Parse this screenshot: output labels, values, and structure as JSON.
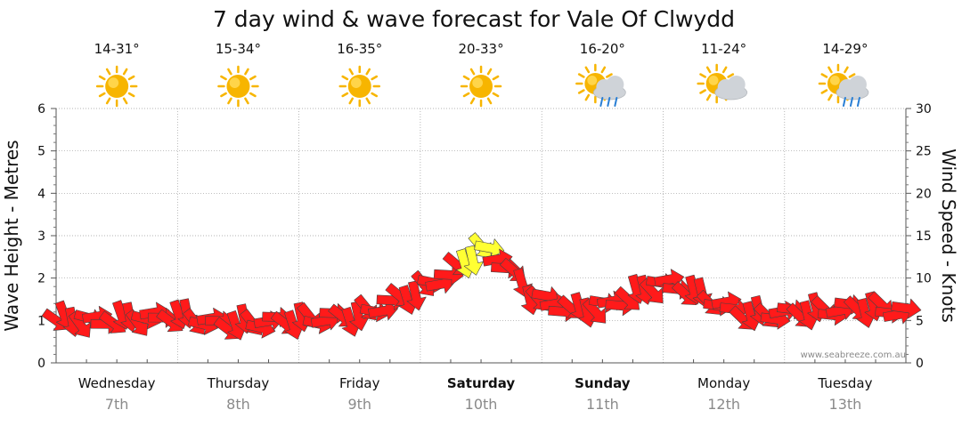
{
  "title": "7 day wind & wave forecast for Vale Of Clwydd",
  "watermark": "www.seabreeze.com.au",
  "colors": {
    "wind_arrow": "#ff1a1a",
    "wind_arrow_strong": "#ffff33",
    "arrow_outline": "#444444",
    "grid": "#9a9a9a",
    "sun": "#f7b500",
    "cloud": "#cfd3d8",
    "rain": "#2a7fd4"
  },
  "days": [
    {
      "name": "Wednesday",
      "date": "7th",
      "temp": "14-31°",
      "weather_icon": "sun-icon",
      "bold": false
    },
    {
      "name": "Thursday",
      "date": "8th",
      "temp": "15-34°",
      "weather_icon": "sun-icon",
      "bold": false
    },
    {
      "name": "Friday",
      "date": "9th",
      "temp": "16-35°",
      "weather_icon": "sun-icon",
      "bold": false
    },
    {
      "name": "Saturday",
      "date": "10th",
      "temp": "20-33°",
      "weather_icon": "sun-icon",
      "bold": true
    },
    {
      "name": "Sunday",
      "date": "11th",
      "temp": "16-20°",
      "weather_icon": "sun-cloud-rain-icon",
      "bold": true
    },
    {
      "name": "Monday",
      "date": "12th",
      "temp": "11-24°",
      "weather_icon": "sun-cloud-icon",
      "bold": false
    },
    {
      "name": "Tuesday",
      "date": "13th",
      "temp": "14-29°",
      "weather_icon": "sun-cloud-rain-icon",
      "bold": false
    }
  ],
  "chart_data": {
    "type": "line",
    "ylabel": "Wave Height - Metres",
    "y2label": "Wind Speed - Knots",
    "ylim": [
      0,
      6
    ],
    "y2lim": [
      0,
      30
    ],
    "yticks": [
      "0",
      "1",
      "2",
      "3",
      "4",
      "5",
      "6"
    ],
    "y2ticks": [
      "0",
      "5",
      "10",
      "15",
      "20",
      "25",
      "30"
    ],
    "grid": true,
    "series": [
      {
        "points": [
          {
            "t": 0.0,
            "knots": 5
          },
          {
            "t": 0.4,
            "knots": 5
          },
          {
            "t": 1.0,
            "knots": 5.5
          },
          {
            "t": 1.4,
            "knots": 4.5
          },
          {
            "t": 2.0,
            "knots": 5
          },
          {
            "t": 2.5,
            "knots": 5.5
          },
          {
            "t": 3.0,
            "knots": 8.5
          },
          {
            "t": 3.3,
            "knots": 11
          },
          {
            "t": 3.5,
            "knots": 13.5
          },
          {
            "t": 3.65,
            "knots": 12.5
          },
          {
            "t": 3.9,
            "knots": 8
          },
          {
            "t": 4.3,
            "knots": 6
          },
          {
            "t": 4.6,
            "knots": 7
          },
          {
            "t": 5.0,
            "knots": 9.5
          },
          {
            "t": 5.3,
            "knots": 8
          },
          {
            "t": 5.7,
            "knots": 5.5
          },
          {
            "t": 6.2,
            "knots": 6
          },
          {
            "t": 6.7,
            "knots": 6.5
          },
          {
            "t": 7.0,
            "knots": 6
          }
        ]
      }
    ]
  }
}
